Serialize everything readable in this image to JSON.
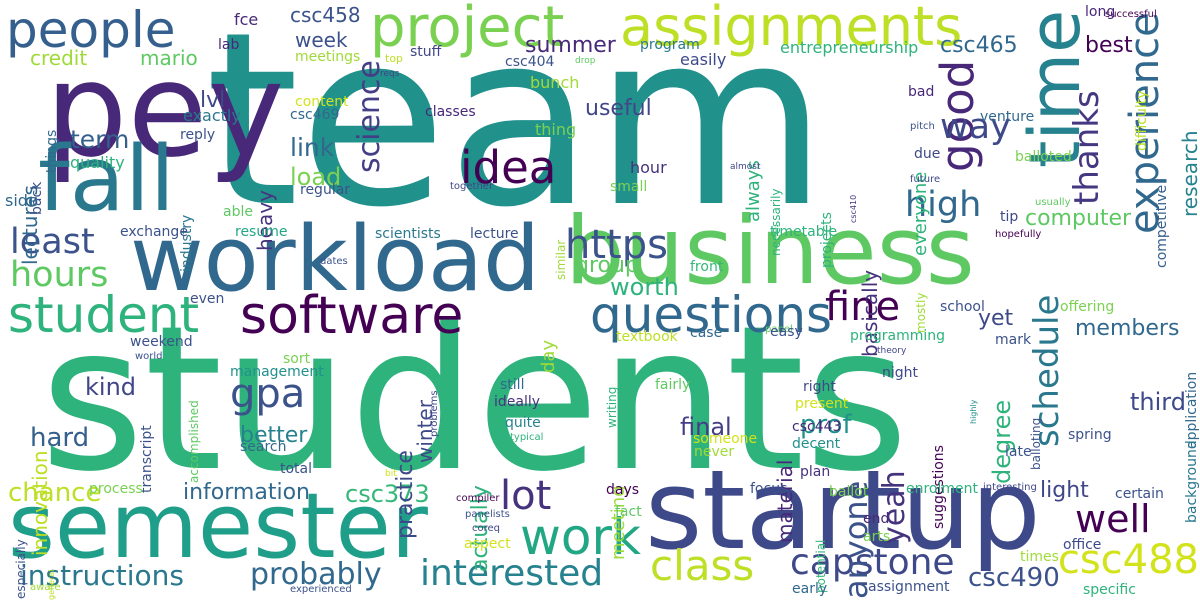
{
  "words": [
    {
      "text": "students",
      "color": "#2eb37c"
    },
    {
      "text": "team",
      "color": "#21918c"
    },
    {
      "text": "pey",
      "color": "#482878"
    },
    {
      "text": "startup",
      "color": "#3e4989"
    },
    {
      "text": "business",
      "color": "#5ec962"
    },
    {
      "text": "workload",
      "color": "#31688e"
    },
    {
      "text": "semester",
      "color": "#1f9e89"
    },
    {
      "text": "fall",
      "color": "#2a788e"
    },
    {
      "text": "time",
      "color": "#26828e"
    },
    {
      "text": "experience",
      "color": "#31688e"
    },
    {
      "text": "people",
      "color": "#35608d"
    },
    {
      "text": "project",
      "color": "#7ad151"
    },
    {
      "text": "assignments",
      "color": "#bddf26"
    },
    {
      "text": "software",
      "color": "#440154"
    },
    {
      "text": "work",
      "color": "#22a785"
    },
    {
      "text": "good",
      "color": "#482878"
    },
    {
      "text": "schedule",
      "color": "#2a788e"
    },
    {
      "text": "https",
      "color": "#3b528b"
    },
    {
      "text": "capstone",
      "color": "#3e4989"
    },
    {
      "text": "csc488",
      "color": "#d2e21b"
    },
    {
      "text": "questions",
      "color": "#31688e"
    },
    {
      "text": "student",
      "color": "#2eb37c"
    },
    {
      "text": "class",
      "color": "#bddf26"
    },
    {
      "text": "interested",
      "color": "#26828e"
    },
    {
      "text": "instructions",
      "color": "#2a788e"
    },
    {
      "text": "idea",
      "color": "#440154"
    },
    {
      "text": "lot",
      "color": "#46337e"
    },
    {
      "text": "well",
      "color": "#440154"
    },
    {
      "text": "thanks",
      "color": "#453781"
    },
    {
      "text": "science",
      "color": "#433e85"
    },
    {
      "text": "gpa",
      "color": "#3b528b"
    },
    {
      "text": "anyone",
      "color": "#3b528b"
    },
    {
      "text": "yeah",
      "color": "#46337e"
    },
    {
      "text": "fine",
      "color": "#440154"
    },
    {
      "text": "high",
      "color": "#31688e"
    },
    {
      "text": "least",
      "color": "#3b528b"
    },
    {
      "text": "hours",
      "color": "#5ec962"
    },
    {
      "text": "probably",
      "color": "#31688e"
    },
    {
      "text": "way",
      "color": "#3e4989"
    },
    {
      "text": "research",
      "color": "#26828e"
    },
    {
      "text": "worth",
      "color": "#2eb37c"
    },
    {
      "text": "csc465",
      "color": "#31688e"
    },
    {
      "text": "csc373",
      "color": "#35b779"
    },
    {
      "text": "csc490",
      "color": "#3b528b"
    },
    {
      "text": "information",
      "color": "#31688e"
    },
    {
      "text": "chance",
      "color": "#bddf26"
    },
    {
      "text": "practice",
      "color": "#3e4989"
    },
    {
      "text": "prof",
      "color": "#21918c"
    },
    {
      "text": "final",
      "color": "#433e85"
    },
    {
      "text": "material",
      "color": "#482878"
    },
    {
      "text": "term",
      "color": "#35608d"
    },
    {
      "text": "link",
      "color": "#31688e"
    },
    {
      "text": "load",
      "color": "#7ad151"
    },
    {
      "text": "group",
      "color": "#5ec962"
    },
    {
      "text": "useful",
      "color": "#404688"
    },
    {
      "text": "hard",
      "color": "#35608d"
    },
    {
      "text": "kind",
      "color": "#404688"
    },
    {
      "text": "lvl",
      "color": "#3e4989"
    },
    {
      "text": "heavy",
      "color": "#46337e"
    },
    {
      "text": "winter",
      "color": "#3e4989"
    },
    {
      "text": "actually",
      "color": "#2eb37c"
    },
    {
      "text": "basically",
      "color": "#46337e"
    },
    {
      "text": "always",
      "color": "#2eb37c"
    },
    {
      "text": "everyone",
      "color": "#2eb37c"
    },
    {
      "text": "third",
      "color": "#3e4989"
    },
    {
      "text": "members",
      "color": "#31688e"
    },
    {
      "text": "light",
      "color": "#404688"
    },
    {
      "text": "degree",
      "color": "#2eb37c"
    },
    {
      "text": "better",
      "color": "#26828e"
    },
    {
      "text": "innovation",
      "color": "#bddf26"
    },
    {
      "text": "computer",
      "color": "#5ec962"
    },
    {
      "text": "best",
      "color": "#440154"
    },
    {
      "text": "yet",
      "color": "#3e4989"
    },
    {
      "text": "summer",
      "color": "#482878"
    },
    {
      "text": "mario",
      "color": "#5ec962"
    },
    {
      "text": "credit",
      "color": "#a0da39"
    },
    {
      "text": "lectures",
      "color": "#31688e"
    },
    {
      "text": "week",
      "color": "#3b528b"
    },
    {
      "text": "csc458",
      "color": "#3b528b"
    },
    {
      "text": "day",
      "color": "#a0da39"
    },
    {
      "text": "meeting",
      "color": "#a0da39"
    },
    {
      "text": "entrepreneurship",
      "color": "#2eb37c"
    },
    {
      "text": "program",
      "color": "#2a788e"
    },
    {
      "text": "easily",
      "color": "#3e4989"
    },
    {
      "text": "stuff",
      "color": "#404688"
    },
    {
      "text": "csc404",
      "color": "#3b528b"
    },
    {
      "text": "bunch",
      "color": "#a0da39"
    },
    {
      "text": "classes",
      "color": "#482878"
    },
    {
      "text": "thing",
      "color": "#7ad151"
    },
    {
      "text": "hour",
      "color": "#46337e"
    },
    {
      "text": "small",
      "color": "#7ad151"
    },
    {
      "text": "meetings",
      "color": "#a0da39"
    },
    {
      "text": "top",
      "color": "#bddf26"
    },
    {
      "text": "reqs",
      "color": "#404688"
    },
    {
      "text": "drop",
      "color": "#5ec962"
    },
    {
      "text": "fce",
      "color": "#482878"
    },
    {
      "text": "lab",
      "color": "#482878"
    },
    {
      "text": "things",
      "color": "#31688e"
    },
    {
      "text": "exactly",
      "color": "#2a788e"
    },
    {
      "text": "content",
      "color": "#d2e21b"
    },
    {
      "text": "csc469",
      "color": "#31688e"
    },
    {
      "text": "quality",
      "color": "#2eb37c"
    },
    {
      "text": "reply",
      "color": "#3b528b"
    },
    {
      "text": "industry",
      "color": "#2a788e"
    },
    {
      "text": "back",
      "color": "#3b528b"
    },
    {
      "text": "regular",
      "color": "#3b528b"
    },
    {
      "text": "side",
      "color": "#31688e"
    },
    {
      "text": "able",
      "color": "#5ec962"
    },
    {
      "text": "exchange",
      "color": "#3b528b"
    },
    {
      "text": "resume",
      "color": "#22a785"
    },
    {
      "text": "scientists",
      "color": "#2a788e"
    },
    {
      "text": "lecture",
      "color": "#3b528b"
    },
    {
      "text": "together",
      "color": "#404688"
    },
    {
      "text": "similar",
      "color": "#a0da39"
    },
    {
      "text": "front",
      "color": "#35b779"
    },
    {
      "text": "timetable",
      "color": "#2eb37c"
    },
    {
      "text": "projects",
      "color": "#2eb37c"
    },
    {
      "text": "necessarily",
      "color": "#2eb37c"
    },
    {
      "text": "almost",
      "color": "#404688"
    },
    {
      "text": "bad",
      "color": "#482878"
    },
    {
      "text": "pitch",
      "color": "#3b528b"
    },
    {
      "text": "due",
      "color": "#3e4989"
    },
    {
      "text": "future",
      "color": "#3e4989"
    },
    {
      "text": "venture",
      "color": "#31688e"
    },
    {
      "text": "balloted",
      "color": "#7ad151"
    },
    {
      "text": "csc410",
      "color": "#46337e"
    },
    {
      "text": "tip",
      "color": "#3e4989"
    },
    {
      "text": "hopefully",
      "color": "#440154"
    },
    {
      "text": "usually",
      "color": "#5ec962"
    },
    {
      "text": "difficulty",
      "color": "#bddf26"
    },
    {
      "text": "competitive",
      "color": "#35608d"
    },
    {
      "text": "successful",
      "color": "#440154"
    },
    {
      "text": "long",
      "color": "#482878"
    },
    {
      "text": "application",
      "color": "#31688e"
    },
    {
      "text": "background",
      "color": "#2a788e"
    },
    {
      "text": "offering",
      "color": "#7ad151"
    },
    {
      "text": "school",
      "color": "#3b528b"
    },
    {
      "text": "mostly",
      "color": "#a0da39"
    },
    {
      "text": "dates",
      "color": "#3b528b"
    },
    {
      "text": "even",
      "color": "#3b528b"
    },
    {
      "text": "world",
      "color": "#3b528b"
    },
    {
      "text": "weekend",
      "color": "#3b528b"
    },
    {
      "text": "management",
      "color": "#21918c"
    },
    {
      "text": "accomplished",
      "color": "#5ec962"
    },
    {
      "text": "sort",
      "color": "#7ad151"
    },
    {
      "text": "textbook",
      "color": "#bddf26"
    },
    {
      "text": "problems",
      "color": "#3e4989"
    },
    {
      "text": "writing",
      "color": "#2eb37c"
    },
    {
      "text": "case",
      "color": "#31688e"
    },
    {
      "text": "panel",
      "color": "#5ec962"
    },
    {
      "text": "easy",
      "color": "#3b528b"
    },
    {
      "text": "programming",
      "color": "#2eb37c"
    },
    {
      "text": "theory",
      "color": "#404688"
    },
    {
      "text": "mark",
      "color": "#3b528b"
    },
    {
      "text": "highly",
      "color": "#21918c"
    },
    {
      "text": "night",
      "color": "#3e4989"
    },
    {
      "text": "right",
      "color": "#3e4989"
    },
    {
      "text": "present",
      "color": "#d2e21b"
    },
    {
      "text": "suggestions",
      "color": "#440154"
    },
    {
      "text": "balloting",
      "color": "#3b528b"
    },
    {
      "text": "fairly",
      "color": "#5ec962"
    },
    {
      "text": "still",
      "color": "#31688e"
    },
    {
      "text": "ideally",
      "color": "#46337e"
    },
    {
      "text": "quite",
      "color": "#26828e"
    },
    {
      "text": "typical",
      "color": "#2eb37c"
    },
    {
      "text": "transcript",
      "color": "#3b528b"
    },
    {
      "text": "search",
      "color": "#31688e"
    },
    {
      "text": "total",
      "color": "#3b528b"
    },
    {
      "text": "process",
      "color": "#7ad151"
    },
    {
      "text": "someone",
      "color": "#d2e21b"
    },
    {
      "text": "never",
      "color": "#a0da39"
    },
    {
      "text": "csc443",
      "color": "#482878"
    },
    {
      "text": "decent",
      "color": "#21918c"
    },
    {
      "text": "plan",
      "color": "#46337e"
    },
    {
      "text": "late",
      "color": "#3b528b"
    },
    {
      "text": "spring",
      "color": "#3b528b"
    },
    {
      "text": "days",
      "color": "#440154"
    },
    {
      "text": "focus",
      "color": "#3b528b"
    },
    {
      "text": "ballot",
      "color": "#7ad151"
    },
    {
      "text": "enrolment",
      "color": "#2eb37c"
    },
    {
      "text": "interesting",
      "color": "#404688"
    },
    {
      "text": "certain",
      "color": "#3b528b"
    },
    {
      "text": "compiler",
      "color": "#440154"
    },
    {
      "text": "panelists",
      "color": "#3b528b"
    },
    {
      "text": "fact",
      "color": "#5ec962"
    },
    {
      "text": "potential",
      "color": "#35b779"
    },
    {
      "text": "arts",
      "color": "#7ad151"
    },
    {
      "text": "end",
      "color": "#482878"
    },
    {
      "text": "office",
      "color": "#3e4989"
    },
    {
      "text": "times",
      "color": "#a0da39"
    },
    {
      "text": "specific",
      "color": "#2eb37c"
    },
    {
      "text": "especially",
      "color": "#3b528b"
    },
    {
      "text": "general",
      "color": "#bddf26"
    },
    {
      "text": "aware",
      "color": "#a0da39"
    },
    {
      "text": "experienced",
      "color": "#3b528b"
    },
    {
      "text": "coreq",
      "color": "#404688"
    },
    {
      "text": "aspect",
      "color": "#d2e21b"
    },
    {
      "text": "early",
      "color": "#31688e"
    },
    {
      "text": "assignment",
      "color": "#3b528b"
    },
    {
      "text": "bit",
      "color": "#d2e21b"
    }
  ]
}
